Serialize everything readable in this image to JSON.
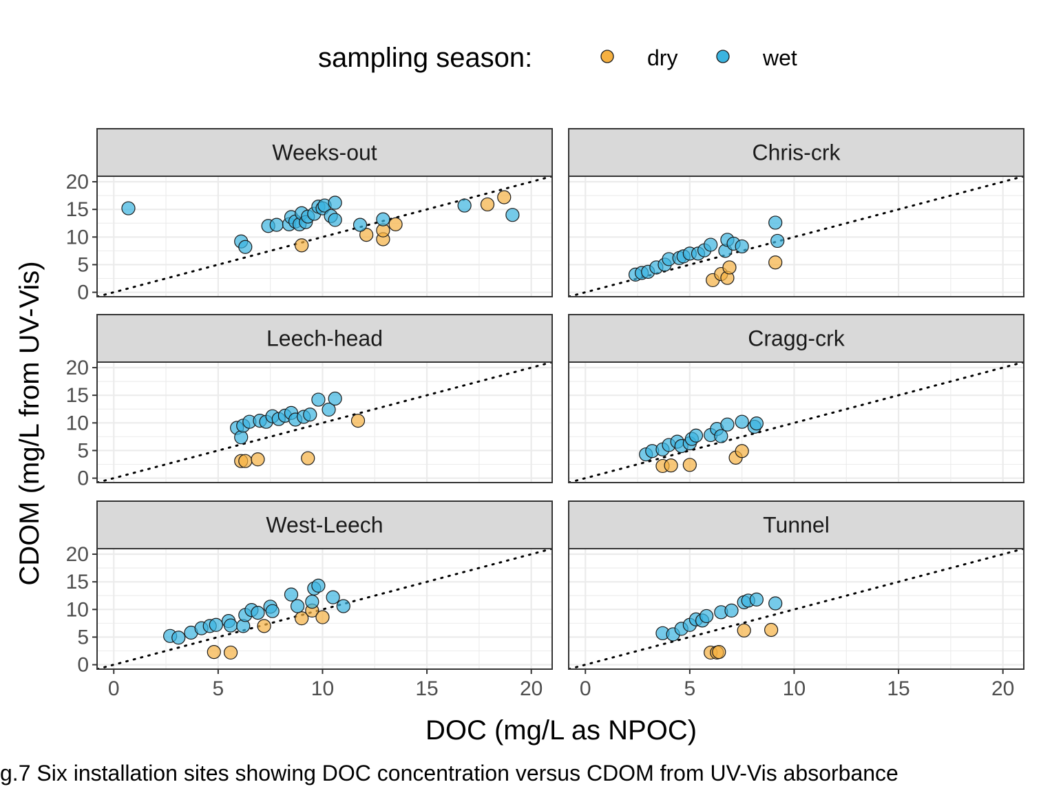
{
  "caption": "g.7 Six installation sites showing DOC concentration versus CDOM from UV-Vis absorbance",
  "legend": {
    "title": "sampling season:",
    "items": [
      {
        "label": "dry",
        "color": "#F5B041"
      },
      {
        "label": "wet",
        "color": "#3BB4E0"
      }
    ]
  },
  "chart_data": {
    "type": "scatter",
    "xlabel": "DOC (mg/L as NPOC)",
    "ylabel": "CDOM (mg/L from UV-Vis)",
    "xlim": [
      -0.8,
      21
    ],
    "ylim": [
      -0.8,
      21
    ],
    "x_ticks": [
      0,
      5,
      10,
      15,
      20
    ],
    "y_ticks": [
      0,
      5,
      10,
      15,
      20
    ],
    "grid": true,
    "reference_line": "1:1 dotted",
    "legend_position": "top",
    "facets": [
      {
        "name": "Weeks-out",
        "series": [
          {
            "name": "dry",
            "points": [
              [
                9.0,
                8.5
              ],
              [
                12.1,
                10.4
              ],
              [
                12.9,
                9.6
              ],
              [
                12.9,
                11.2
              ],
              [
                13.5,
                12.3
              ],
              [
                17.9,
                15.9
              ],
              [
                18.7,
                17.2
              ]
            ]
          },
          {
            "name": "wet",
            "points": [
              [
                0.7,
                15.2
              ],
              [
                6.1,
                9.2
              ],
              [
                6.3,
                8.2
              ],
              [
                7.4,
                12.0
              ],
              [
                7.8,
                12.2
              ],
              [
                8.4,
                12.3
              ],
              [
                8.5,
                13.6
              ],
              [
                8.7,
                12.8
              ],
              [
                8.9,
                12.3
              ],
              [
                9.0,
                14.3
              ],
              [
                9.2,
                12.7
              ],
              [
                9.3,
                13.7
              ],
              [
                9.6,
                14.2
              ],
              [
                9.8,
                15.5
              ],
              [
                10.0,
                15.2
              ],
              [
                10.1,
                15.7
              ],
              [
                10.4,
                13.8
              ],
              [
                10.6,
                13.1
              ],
              [
                10.6,
                16.2
              ],
              [
                11.8,
                12.2
              ],
              [
                12.9,
                13.2
              ],
              [
                16.8,
                15.7
              ],
              [
                19.1,
                14.0
              ]
            ]
          }
        ]
      },
      {
        "name": "Chris-crk",
        "series": [
          {
            "name": "dry",
            "points": [
              [
                6.1,
                2.2
              ],
              [
                6.5,
                3.3
              ],
              [
                6.8,
                2.6
              ],
              [
                6.9,
                4.5
              ],
              [
                9.1,
                5.4
              ]
            ]
          },
          {
            "name": "wet",
            "points": [
              [
                2.4,
                3.2
              ],
              [
                2.7,
                3.5
              ],
              [
                3.0,
                3.7
              ],
              [
                3.4,
                4.5
              ],
              [
                3.8,
                5.0
              ],
              [
                4.0,
                6.0
              ],
              [
                4.5,
                6.2
              ],
              [
                4.7,
                6.5
              ],
              [
                5.0,
                7.0
              ],
              [
                5.4,
                7.0
              ],
              [
                5.7,
                7.6
              ],
              [
                6.0,
                8.6
              ],
              [
                6.7,
                7.5
              ],
              [
                6.8,
                9.5
              ],
              [
                7.1,
                8.8
              ],
              [
                7.5,
                8.3
              ],
              [
                9.1,
                12.6
              ],
              [
                9.2,
                9.3
              ]
            ]
          }
        ]
      },
      {
        "name": "Leech-head",
        "series": [
          {
            "name": "dry",
            "points": [
              [
                6.1,
                3.1
              ],
              [
                6.3,
                3.1
              ],
              [
                6.9,
                3.4
              ],
              [
                9.3,
                3.6
              ],
              [
                11.7,
                10.4
              ]
            ]
          },
          {
            "name": "wet",
            "points": [
              [
                5.9,
                9.1
              ],
              [
                6.1,
                7.4
              ],
              [
                6.2,
                9.5
              ],
              [
                6.5,
                10.2
              ],
              [
                7.0,
                10.4
              ],
              [
                7.3,
                10.2
              ],
              [
                7.6,
                11.2
              ],
              [
                7.9,
                10.7
              ],
              [
                8.2,
                11.3
              ],
              [
                8.5,
                11.8
              ],
              [
                8.7,
                10.6
              ],
              [
                9.1,
                11.1
              ],
              [
                9.4,
                11.5
              ],
              [
                9.8,
                14.2
              ],
              [
                10.3,
                12.4
              ],
              [
                10.6,
                14.4
              ]
            ]
          }
        ]
      },
      {
        "name": "Cragg-crk",
        "series": [
          {
            "name": "dry",
            "points": [
              [
                3.7,
                2.2
              ],
              [
                4.1,
                2.3
              ],
              [
                5.0,
                2.4
              ],
              [
                7.2,
                3.7
              ],
              [
                7.5,
                4.9
              ]
            ]
          },
          {
            "name": "wet",
            "points": [
              [
                2.9,
                4.3
              ],
              [
                3.2,
                4.9
              ],
              [
                3.7,
                5.2
              ],
              [
                4.0,
                6.0
              ],
              [
                4.4,
                6.6
              ],
              [
                4.6,
                5.8
              ],
              [
                5.0,
                6.3
              ],
              [
                5.1,
                7.1
              ],
              [
                5.3,
                7.7
              ],
              [
                6.0,
                7.8
              ],
              [
                6.3,
                8.9
              ],
              [
                6.5,
                7.6
              ],
              [
                6.8,
                9.7
              ],
              [
                7.5,
                10.2
              ],
              [
                8.1,
                9.3
              ],
              [
                8.2,
                9.9
              ]
            ]
          }
        ]
      },
      {
        "name": "West-Leech",
        "series": [
          {
            "name": "dry",
            "points": [
              [
                4.8,
                2.3
              ],
              [
                5.6,
                2.2
              ],
              [
                7.2,
                7.0
              ],
              [
                9.0,
                8.4
              ],
              [
                9.5,
                9.8
              ],
              [
                10.0,
                8.6
              ]
            ]
          },
          {
            "name": "wet",
            "points": [
              [
                2.7,
                5.2
              ],
              [
                3.1,
                4.9
              ],
              [
                3.7,
                5.8
              ],
              [
                4.2,
                6.6
              ],
              [
                4.6,
                7.0
              ],
              [
                4.9,
                7.2
              ],
              [
                5.5,
                7.9
              ],
              [
                5.6,
                7.1
              ],
              [
                6.2,
                7.0
              ],
              [
                6.3,
                9.0
              ],
              [
                6.6,
                9.9
              ],
              [
                6.9,
                9.4
              ],
              [
                7.5,
                10.5
              ],
              [
                7.6,
                9.7
              ],
              [
                8.5,
                12.7
              ],
              [
                8.8,
                10.6
              ],
              [
                9.5,
                11.4
              ],
              [
                9.6,
                13.8
              ],
              [
                9.8,
                14.3
              ],
              [
                10.5,
                12.2
              ],
              [
                11.0,
                10.6
              ]
            ]
          }
        ]
      },
      {
        "name": "Tunnel",
        "series": [
          {
            "name": "dry",
            "points": [
              [
                6.0,
                2.2
              ],
              [
                6.3,
                2.2
              ],
              [
                6.4,
                2.3
              ],
              [
                7.6,
                6.2
              ],
              [
                8.9,
                6.3
              ]
            ]
          },
          {
            "name": "wet",
            "points": [
              [
                3.7,
                5.7
              ],
              [
                4.2,
                5.5
              ],
              [
                4.6,
                6.5
              ],
              [
                5.0,
                7.2
              ],
              [
                5.3,
                8.2
              ],
              [
                5.6,
                8.0
              ],
              [
                5.8,
                8.8
              ],
              [
                6.5,
                9.5
              ],
              [
                7.0,
                9.8
              ],
              [
                7.6,
                11.3
              ],
              [
                7.8,
                11.6
              ],
              [
                8.2,
                11.8
              ],
              [
                9.1,
                11.1
              ]
            ]
          }
        ]
      }
    ]
  }
}
